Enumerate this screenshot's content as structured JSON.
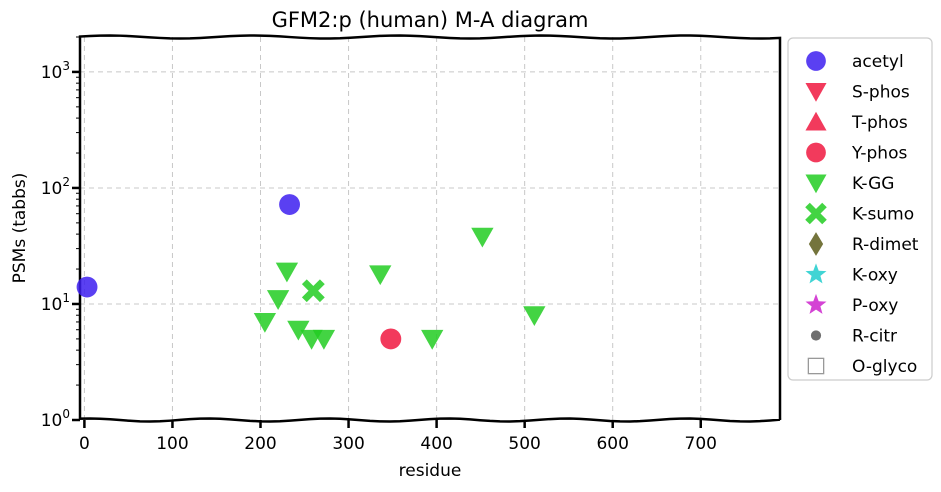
{
  "chart_data": {
    "type": "scatter",
    "title": "GFM2:p (human) M-A diagram",
    "xlabel": "residue",
    "ylabel": "PSMs (tabbs)",
    "xlim": [
      -5,
      790
    ],
    "ylim": [
      1,
      2000
    ],
    "yscale": "log",
    "xticks": [
      0,
      100,
      200,
      300,
      400,
      500,
      600,
      700
    ],
    "yticks": [
      {
        "value": 1,
        "base": "10",
        "exp": "0"
      },
      {
        "value": 10,
        "base": "10",
        "exp": "1"
      },
      {
        "value": 100,
        "base": "10",
        "exp": "2"
      },
      {
        "value": 1000,
        "base": "10",
        "exp": "3"
      }
    ],
    "grid": true,
    "legend_position": "right-outside",
    "series": [
      {
        "name": "acetyl",
        "marker": "circle",
        "color": "#3d1ff0",
        "points": [
          {
            "x": 3,
            "y": 14
          },
          {
            "x": 233,
            "y": 72
          }
        ]
      },
      {
        "name": "S-phos",
        "marker": "triangle-down",
        "color": "#f0173f",
        "points": []
      },
      {
        "name": "T-phos",
        "marker": "triangle-up",
        "color": "#f0173f",
        "points": []
      },
      {
        "name": "Y-phos",
        "marker": "circle",
        "color": "#f0173f",
        "points": [
          {
            "x": 348,
            "y": 5
          }
        ]
      },
      {
        "name": "K-GG",
        "marker": "triangle-down",
        "color": "#22cc22",
        "points": [
          {
            "x": 205,
            "y": 7
          },
          {
            "x": 220,
            "y": 11
          },
          {
            "x": 230,
            "y": 19
          },
          {
            "x": 243,
            "y": 6
          },
          {
            "x": 258,
            "y": 5
          },
          {
            "x": 272,
            "y": 5
          },
          {
            "x": 336,
            "y": 18
          },
          {
            "x": 395,
            "y": 5
          },
          {
            "x": 452,
            "y": 38
          },
          {
            "x": 511,
            "y": 8
          }
        ]
      },
      {
        "name": "K-sumo",
        "marker": "x",
        "color": "#22cc22",
        "points": [
          {
            "x": 260,
            "y": 13
          }
        ]
      },
      {
        "name": "R-dimet",
        "marker": "diamond",
        "color": "#5c5c1a",
        "points": []
      },
      {
        "name": "K-oxy",
        "marker": "star",
        "color": "#1fcccc",
        "points": []
      },
      {
        "name": "P-oxy",
        "marker": "star",
        "color": "#cc22cc",
        "points": []
      },
      {
        "name": "R-citr",
        "marker": "small-circle",
        "color": "#555555",
        "points": []
      },
      {
        "name": "O-glyco",
        "marker": "square-open",
        "color": "#999999",
        "points": []
      }
    ]
  }
}
